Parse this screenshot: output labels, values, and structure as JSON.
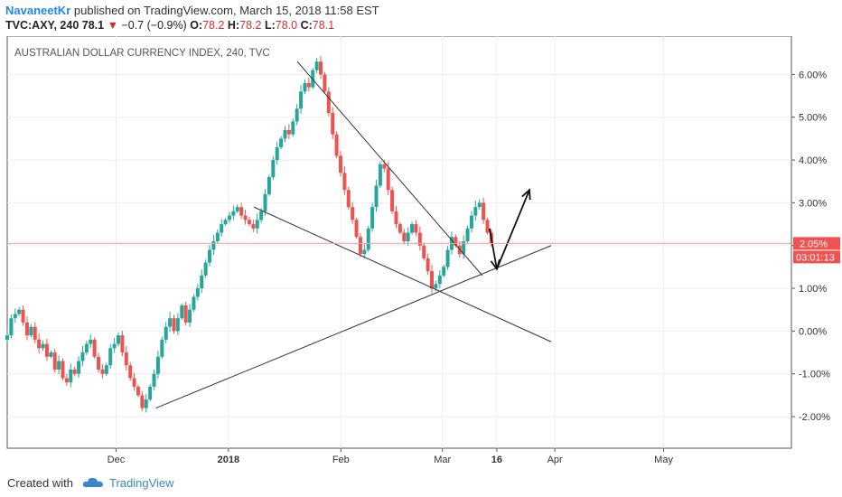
{
  "header": {
    "author": "NavaneetKr",
    "published": "published on TradingView.com, March 15, 2018 11:58 EST",
    "symbol": "TVC:AXY, 240",
    "price": "78.1",
    "change_arrow": "▼",
    "change": "−0.7 (−0.9%)",
    "o_label": "O:",
    "o_value": "78.2",
    "h_label": "H:",
    "h_value": "78.2",
    "l_label": "L:",
    "l_value": "78.0",
    "c_label": "C:",
    "c_value": "78.1"
  },
  "footer": {
    "created_with": "Created with",
    "brand": "TradingView"
  },
  "colors": {
    "up": "#26a69a",
    "down": "#ef5350",
    "line": "#333333",
    "price_line": "#f4a0a0",
    "price_badge": "#ef5350",
    "grid": "#eeeeee"
  },
  "chart_data": {
    "type": "candlestick",
    "title": "AUSTRALIAN DOLLAR CURRENCY INDEX, 240, TVC",
    "y_unit": "%",
    "ylim": [
      -2.4,
      6.6
    ],
    "y_ticks": [
      "6.00%",
      "5.00%",
      "4.00%",
      "3.00%",
      "2.00%",
      "1.00%",
      "0.00%",
      "-1.00%",
      "-2.00%"
    ],
    "x_ticks": [
      "Dec",
      "2018",
      "Feb",
      "Mar",
      "16",
      "Apr",
      "May"
    ],
    "current_value_label": "2.05%",
    "countdown_label": "03:01:13",
    "current_value": 2.05,
    "grid": true,
    "closes": [
      -0.1,
      0.3,
      0.4,
      0.5,
      0.2,
      -0.1,
      0.1,
      -0.2,
      -0.4,
      -0.3,
      -0.6,
      -0.5,
      -0.9,
      -0.7,
      -1.1,
      -1.2,
      -0.9,
      -1.0,
      -0.7,
      -0.5,
      -0.3,
      -0.2,
      -0.6,
      -0.9,
      -1.0,
      -0.8,
      -0.4,
      -0.3,
      -0.1,
      -0.5,
      -0.8,
      -1.1,
      -1.3,
      -1.5,
      -1.8,
      -1.6,
      -1.3,
      -1.0,
      -0.6,
      -0.2,
      0.1,
      0.3,
      0.0,
      0.3,
      0.6,
      0.2,
      0.5,
      0.8,
      1.0,
      1.3,
      1.6,
      1.9,
      2.1,
      2.3,
      2.5,
      2.6,
      2.7,
      2.8,
      2.9,
      2.7,
      2.6,
      2.5,
      2.4,
      2.6,
      2.8,
      3.2,
      3.6,
      4.0,
      4.3,
      4.5,
      4.7,
      4.6,
      4.9,
      5.2,
      5.6,
      5.8,
      5.7,
      6.1,
      6.3,
      6.0,
      5.6,
      5.1,
      4.6,
      4.1,
      3.7,
      3.3,
      2.9,
      2.6,
      2.2,
      1.8,
      1.9,
      2.4,
      2.9,
      3.4,
      3.9,
      3.8,
      3.3,
      2.8,
      2.5,
      2.3,
      2.1,
      2.3,
      2.5,
      2.3,
      2.0,
      1.7,
      1.4,
      1.0,
      1.1,
      1.3,
      1.5,
      1.9,
      2.2,
      2.0,
      1.8,
      2.1,
      2.4,
      2.7,
      2.9,
      3.0,
      2.6,
      2.3,
      2.05
    ]
  },
  "annotations": {
    "trendlines": [
      {
        "from": [
          "2018-01-08",
          2.9
        ],
        "to": [
          "2018-03-31",
          -0.25
        ]
      },
      {
        "from": [
          "2017-12-12",
          -1.8
        ],
        "to": [
          "2018-03-31",
          2.0
        ]
      },
      {
        "from": [
          "2018-01-20",
          6.3
        ],
        "to": [
          "2018-03-12",
          1.3
        ]
      }
    ],
    "arrows": [
      {
        "from": [
          "2018-03-14",
          2.4
        ],
        "to": [
          "2018-03-16",
          1.45
        ]
      },
      {
        "from": [
          "2018-03-16",
          1.45
        ],
        "to": [
          "2018-03-25",
          3.3
        ]
      }
    ]
  }
}
